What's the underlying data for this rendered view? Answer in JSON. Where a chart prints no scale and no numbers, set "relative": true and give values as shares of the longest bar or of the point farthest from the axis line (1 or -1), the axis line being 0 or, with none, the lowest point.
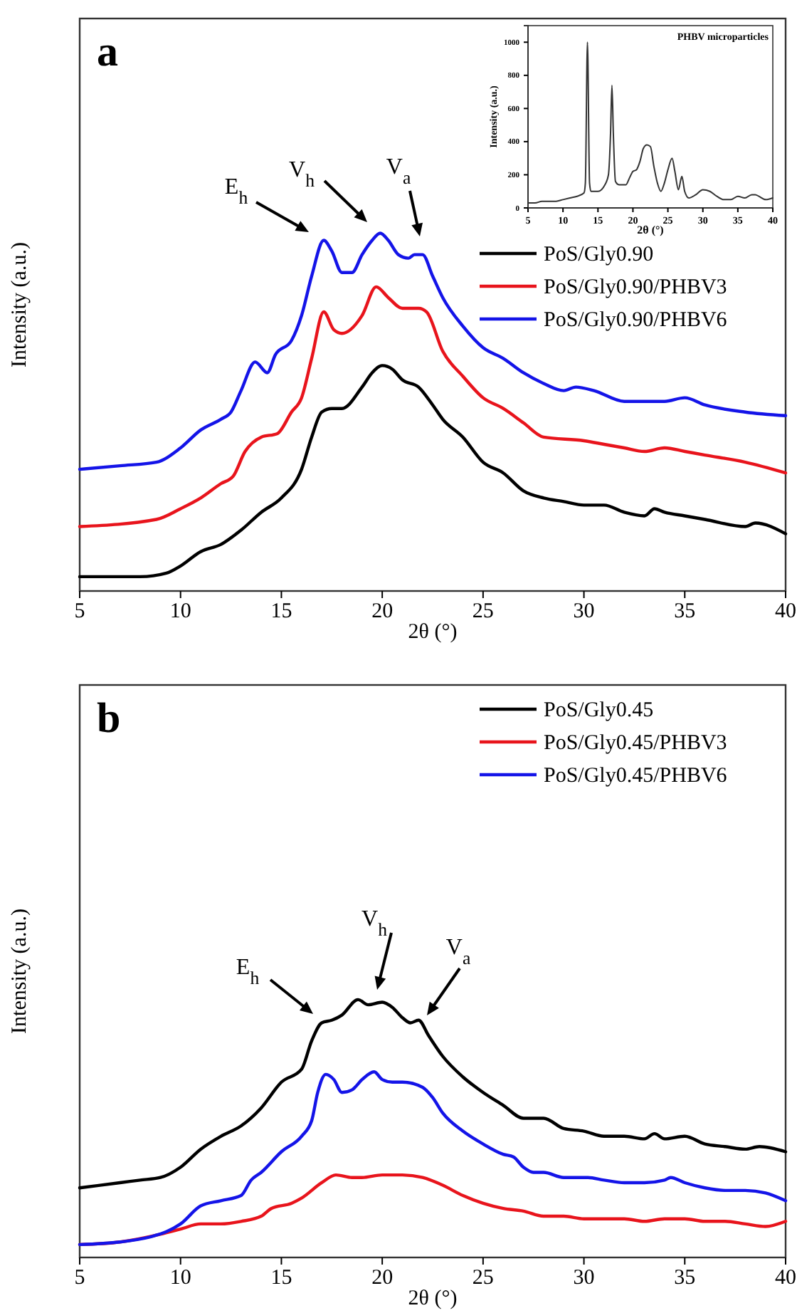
{
  "chart_data": [
    {
      "type": "line",
      "title": "a",
      "xlabel": "2θ (°)",
      "ylabel": "Intensity (a.u.)",
      "relative": true,
      "xlim": [
        5,
        40
      ],
      "xticks": [
        5,
        10,
        15,
        20,
        25,
        30,
        35,
        40
      ],
      "legend": "top right",
      "annotations": [
        "E$_{h}$",
        "V$_{h}$",
        "V$_{a}$"
      ],
      "series": [
        {
          "name": "PoS/Gly0.90",
          "color": "#000000",
          "x": [
            5,
            6,
            8,
            9.3,
            10,
            11,
            12,
            13,
            14,
            15,
            16,
            16.5,
            17,
            17.5,
            18,
            19,
            19.5,
            20,
            20.5,
            21,
            21.8,
            22.5,
            23,
            24,
            25,
            26,
            27,
            28,
            29,
            30,
            31,
            32,
            33,
            33.5,
            34,
            35,
            36,
            38,
            38.5,
            40
          ],
          "values": [
            0.04,
            0.04,
            0.04,
            0.05,
            0.07,
            0.11,
            0.13,
            0.17,
            0.22,
            0.26,
            0.34,
            0.43,
            0.5,
            0.51,
            0.51,
            0.57,
            0.61,
            0.63,
            0.62,
            0.59,
            0.57,
            0.52,
            0.48,
            0.43,
            0.36,
            0.33,
            0.28,
            0.26,
            0.25,
            0.24,
            0.24,
            0.22,
            0.21,
            0.23,
            0.22,
            0.21,
            0.2,
            0.18,
            0.19,
            0.16
          ]
        },
        {
          "name": "PoS/Gly0.90/PHBV3",
          "color": "#e8141c",
          "x": [
            5,
            8.8,
            10,
            11,
            12,
            12.6,
            13.2,
            14,
            14.8,
            15.5,
            16,
            16.5,
            17.1,
            17.6,
            18,
            19,
            19.7,
            20.3,
            21,
            21.8,
            22.2,
            23,
            24,
            25,
            26,
            27,
            28,
            30,
            31,
            32,
            33,
            34,
            35,
            36,
            38,
            40
          ],
          "values": [
            0.18,
            0.2,
            0.23,
            0.26,
            0.3,
            0.32,
            0.39,
            0.43,
            0.44,
            0.5,
            0.54,
            0.65,
            0.78,
            0.73,
            0.72,
            0.77,
            0.85,
            0.82,
            0.79,
            0.79,
            0.78,
            0.67,
            0.6,
            0.54,
            0.51,
            0.47,
            0.43,
            0.42,
            0.41,
            0.4,
            0.39,
            0.4,
            0.39,
            0.38,
            0.36,
            0.33
          ]
        },
        {
          "name": "PoS/Gly0.90/PHBV6",
          "color": "#1414e8",
          "x": [
            5,
            7,
            8.8,
            10,
            11,
            12,
            12.5,
            13,
            13.7,
            14.3,
            14.7,
            15.5,
            16,
            16.5,
            17.1,
            17.5,
            18,
            18.5,
            19,
            19.5,
            19.9,
            20.3,
            20.8,
            21.3,
            21.6,
            22,
            22.5,
            23,
            24,
            25,
            26,
            27,
            28,
            29,
            29.6,
            30.5,
            32,
            34,
            35,
            36,
            38,
            40
          ],
          "values": [
            0.34,
            0.35,
            0.36,
            0.4,
            0.45,
            0.48,
            0.5,
            0.56,
            0.64,
            0.61,
            0.66,
            0.7,
            0.77,
            0.88,
            0.98,
            0.95,
            0.89,
            0.89,
            0.94,
            0.98,
            1.0,
            0.98,
            0.94,
            0.93,
            0.94,
            0.94,
            0.88,
            0.82,
            0.74,
            0.68,
            0.65,
            0.61,
            0.58,
            0.56,
            0.57,
            0.56,
            0.53,
            0.53,
            0.54,
            0.52,
            0.5,
            0.49
          ]
        }
      ]
    },
    {
      "type": "line",
      "title": "PHBV microparticles",
      "xlabel": "2θ (°)",
      "ylabel": "Intensity (a.u.)",
      "xlim": [
        5,
        40
      ],
      "xticks": [
        5,
        10,
        15,
        20,
        25,
        30,
        35,
        40
      ],
      "ylim": [
        0,
        1100
      ],
      "yticks": [
        0,
        200,
        400,
        600,
        800,
        1000
      ],
      "series": [
        {
          "color": "#333333",
          "x": [
            5,
            6,
            7,
            8,
            9,
            10,
            11,
            12,
            13,
            13.2,
            13.5,
            13.8,
            14,
            15,
            16,
            16.5,
            16.8,
            17,
            17.2,
            17.5,
            18,
            19,
            19.5,
            20,
            20.5,
            21,
            21.5,
            22,
            22.5,
            23,
            23.5,
            24,
            24.5,
            25,
            25.6,
            26,
            26.5,
            27,
            27.4,
            28,
            29,
            30,
            31,
            32,
            33,
            34,
            35,
            36,
            37,
            37.5,
            38,
            39,
            40
          ],
          "values": [
            30,
            30,
            40,
            40,
            40,
            50,
            60,
            70,
            90,
            150,
            1000,
            150,
            100,
            100,
            140,
            200,
            450,
            740,
            450,
            160,
            140,
            140,
            180,
            220,
            230,
            280,
            360,
            380,
            370,
            250,
            150,
            100,
            150,
            230,
            300,
            220,
            110,
            190,
            100,
            60,
            80,
            110,
            100,
            70,
            50,
            50,
            70,
            60,
            80,
            80,
            70,
            50,
            60
          ]
        }
      ]
    },
    {
      "type": "line",
      "title": "b",
      "xlabel": "2θ (°)",
      "ylabel": "Intensity (a.u.)",
      "relative": true,
      "xlim": [
        5,
        40
      ],
      "xticks": [
        5,
        10,
        15,
        20,
        25,
        30,
        35,
        40
      ],
      "legend": "top right",
      "annotations": [
        "E$_{h}$",
        "V$_{h}$",
        "V$_{a}$"
      ],
      "series": [
        {
          "name": "PoS/Gly0.45",
          "color": "#000000",
          "x": [
            5,
            7,
            8,
            9,
            10,
            11,
            12,
            13,
            14,
            15,
            16,
            16.5,
            17,
            17.5,
            18,
            18.8,
            19.3,
            20,
            20.5,
            21,
            21.4,
            21.8,
            22.3,
            23,
            24,
            25,
            26,
            27,
            28,
            29,
            30,
            31,
            32,
            33,
            33.5,
            34,
            35,
            36,
            37,
            38,
            38.7,
            40
          ],
          "values": [
            0.27,
            0.29,
            0.3,
            0.31,
            0.35,
            0.42,
            0.47,
            0.51,
            0.58,
            0.68,
            0.73,
            0.84,
            0.91,
            0.92,
            0.94,
            1.0,
            0.98,
            0.99,
            0.97,
            0.93,
            0.91,
            0.92,
            0.86,
            0.78,
            0.7,
            0.64,
            0.59,
            0.54,
            0.54,
            0.5,
            0.49,
            0.47,
            0.47,
            0.46,
            0.48,
            0.46,
            0.47,
            0.44,
            0.43,
            0.42,
            0.43,
            0.41
          ]
        },
        {
          "name": "PoS/Gly0.45/PHBV3",
          "color": "#e8141c",
          "x": [
            5,
            7,
            9,
            10,
            11,
            12,
            13,
            14,
            14.5,
            15.5,
            16,
            17,
            17.7,
            18.5,
            19,
            20,
            21,
            22,
            23,
            24,
            25,
            26,
            27,
            28,
            29,
            30,
            31,
            32,
            33,
            34,
            35,
            36,
            37,
            38,
            39,
            40
          ],
          "values": [
            0.05,
            0.06,
            0.09,
            0.11,
            0.13,
            0.13,
            0.14,
            0.16,
            0.19,
            0.21,
            0.23,
            0.29,
            0.32,
            0.31,
            0.31,
            0.32,
            0.32,
            0.31,
            0.28,
            0.24,
            0.21,
            0.19,
            0.18,
            0.16,
            0.16,
            0.15,
            0.15,
            0.15,
            0.14,
            0.15,
            0.15,
            0.14,
            0.14,
            0.13,
            0.12,
            0.14
          ]
        },
        {
          "name": "PoS/Gly0.45/PHBV6",
          "color": "#1414e8",
          "x": [
            5,
            7,
            8.5,
            9.3,
            10,
            11,
            12,
            13,
            13.5,
            14,
            15,
            16,
            16.5,
            16.8,
            17.2,
            17.6,
            18,
            18.5,
            19,
            19.6,
            20,
            20.5,
            21,
            22,
            22.5,
            23,
            24,
            25,
            26,
            26.5,
            27,
            27.5,
            28,
            29,
            30,
            30.2,
            31,
            32,
            33,
            34,
            34.3,
            35,
            36,
            37,
            38,
            39,
            40
          ],
          "values": [
            0.05,
            0.06,
            0.08,
            0.1,
            0.13,
            0.2,
            0.22,
            0.24,
            0.3,
            0.33,
            0.41,
            0.47,
            0.53,
            0.64,
            0.71,
            0.69,
            0.64,
            0.65,
            0.69,
            0.72,
            0.69,
            0.68,
            0.68,
            0.66,
            0.62,
            0.56,
            0.49,
            0.44,
            0.4,
            0.39,
            0.35,
            0.33,
            0.33,
            0.31,
            0.31,
            0.31,
            0.3,
            0.29,
            0.29,
            0.3,
            0.31,
            0.29,
            0.27,
            0.26,
            0.26,
            0.25,
            0.22
          ]
        }
      ]
    }
  ]
}
